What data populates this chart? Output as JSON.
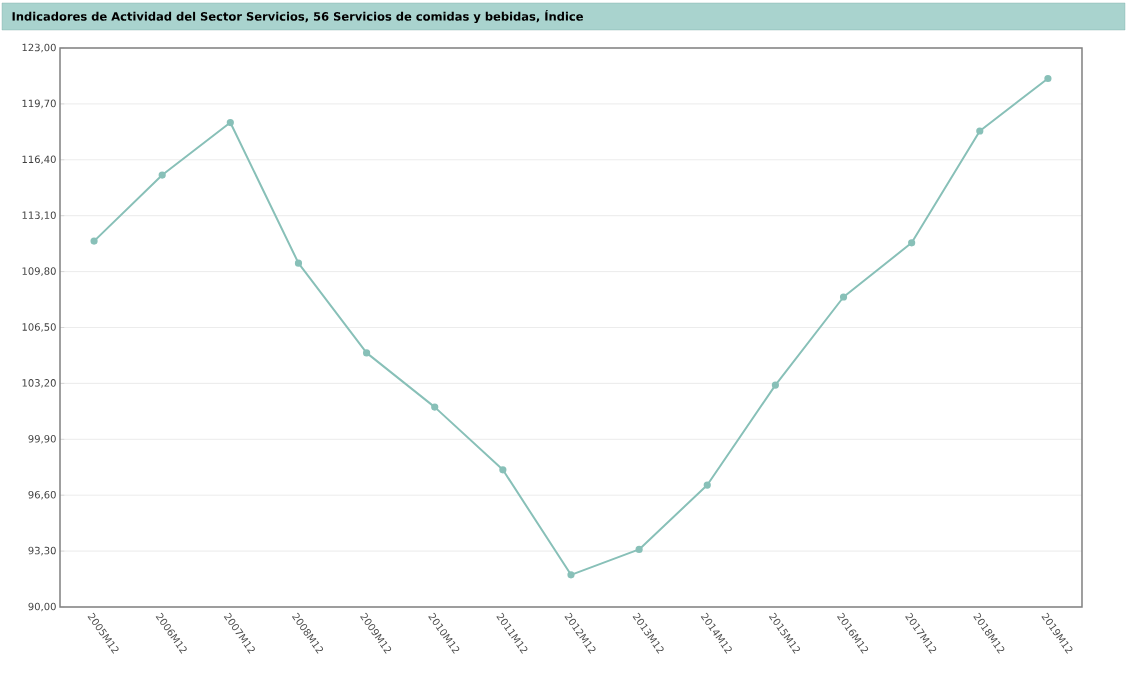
{
  "chart_data": {
    "type": "line",
    "title": "Indicadores de Actividad del Sector Servicios, 56 Servicios de comidas y bebidas, Índice",
    "categories": [
      "2005M12",
      "2006M12",
      "2007M12",
      "2008M12",
      "2009M12",
      "2010M12",
      "2011M12",
      "2012M12",
      "2013M12",
      "2014M12",
      "2015M12",
      "2016M12",
      "2017M12",
      "2018M12",
      "2019M12"
    ],
    "series": [
      {
        "color": "#88c0b8",
        "values": [
          111.6,
          115.5,
          118.6,
          110.3,
          105.0,
          101.8,
          98.1,
          91.9,
          93.4,
          97.2,
          103.1,
          108.3,
          111.5,
          118.1,
          121.2
        ]
      }
    ],
    "ylim": [
      90,
      123
    ],
    "yticks": [
      {
        "value": 90,
        "label": "90,00"
      },
      {
        "value": 93.3,
        "label": "93,30"
      },
      {
        "value": 96.6,
        "label": "96,60"
      },
      {
        "value": 99.9,
        "label": "99,90"
      },
      {
        "value": 103.2,
        "label": "103,20"
      },
      {
        "value": 106.5,
        "label": "106,50"
      },
      {
        "value": 109.8,
        "label": "109,80"
      },
      {
        "value": 113.1,
        "label": "113,10"
      },
      {
        "value": 116.4,
        "label": "116,40"
      },
      {
        "value": 119.7,
        "label": "119,70"
      },
      {
        "value": 123,
        "label": "123,00"
      }
    ],
    "grid": "y",
    "marker": "circle",
    "line_style": "solid"
  }
}
